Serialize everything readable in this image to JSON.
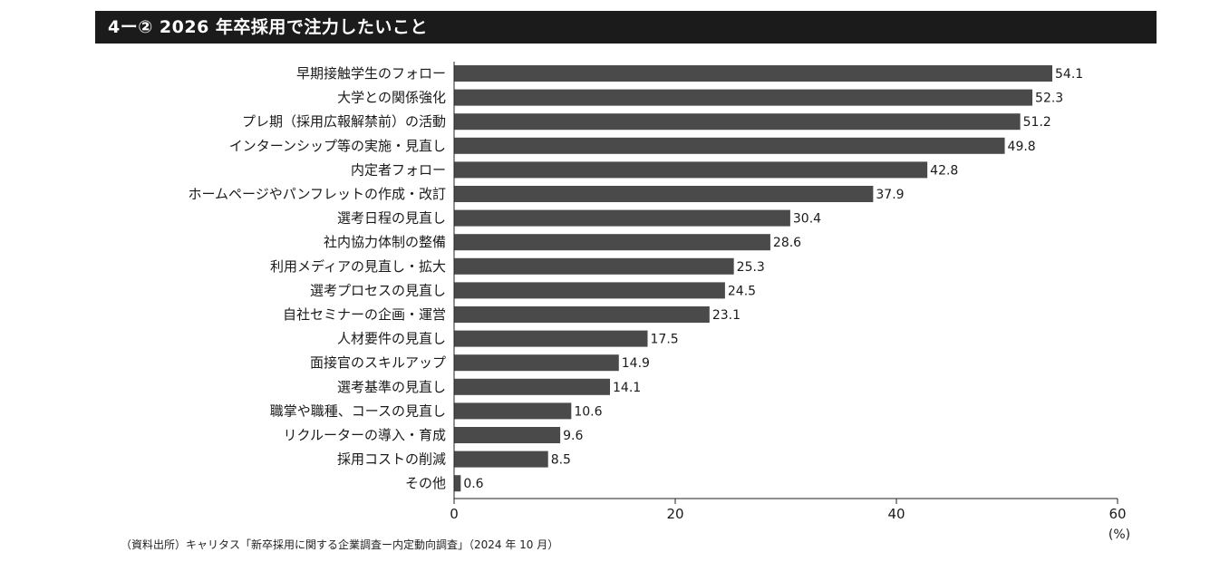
{
  "title": "4ー② 2026 年卒採用で注力したいこと",
  "source": "（資料出所）キャリタス「新卒採用に関する企業調査ー内定動向調査」（2024 年 10 月）",
  "colors": {
    "bar": "#4a4a4a",
    "title_bg": "#1b1b1b",
    "title_text": "#ffffff"
  },
  "chart_data": {
    "type": "bar",
    "orientation": "horizontal",
    "title": "4ー② 2026 年卒採用で注力したいこと",
    "categories": [
      "早期接触学生のフォロー",
      "大学との関係強化",
      "プレ期（採用広報解禁前）の活動",
      "インターンシップ等の実施・見直し",
      "内定者フォロー",
      "ホームページやパンフレットの作成・改訂",
      "選考日程の見直し",
      "社内協力体制の整備",
      "利用メディアの見直し・拡大",
      "選考プロセスの見直し",
      "自社セミナーの企画・運営",
      "人材要件の見直し",
      "面接官のスキルアップ",
      "選考基準の見直し",
      "職掌や職種、コースの見直し",
      "リクルーターの導入・育成",
      "採用コストの削減",
      "その他"
    ],
    "values": [
      54.1,
      52.3,
      51.2,
      49.8,
      42.8,
      37.9,
      30.4,
      28.6,
      25.3,
      24.5,
      23.1,
      17.5,
      14.9,
      14.1,
      10.6,
      9.6,
      8.5,
      0.6
    ],
    "value_labels": [
      "54.1",
      "52.3",
      "51.2",
      "49.8",
      "42.8",
      "37.9",
      "30.4",
      "28.6",
      "25.3",
      "24.5",
      "23.1",
      "17.5",
      "14.9",
      "14.1",
      "10.6",
      "9.6",
      "8.5",
      "0.6"
    ],
    "xlim": [
      0,
      60
    ],
    "xticks": [
      "0",
      "20",
      "40",
      "60"
    ],
    "xunit": "(%)",
    "grid": false
  }
}
